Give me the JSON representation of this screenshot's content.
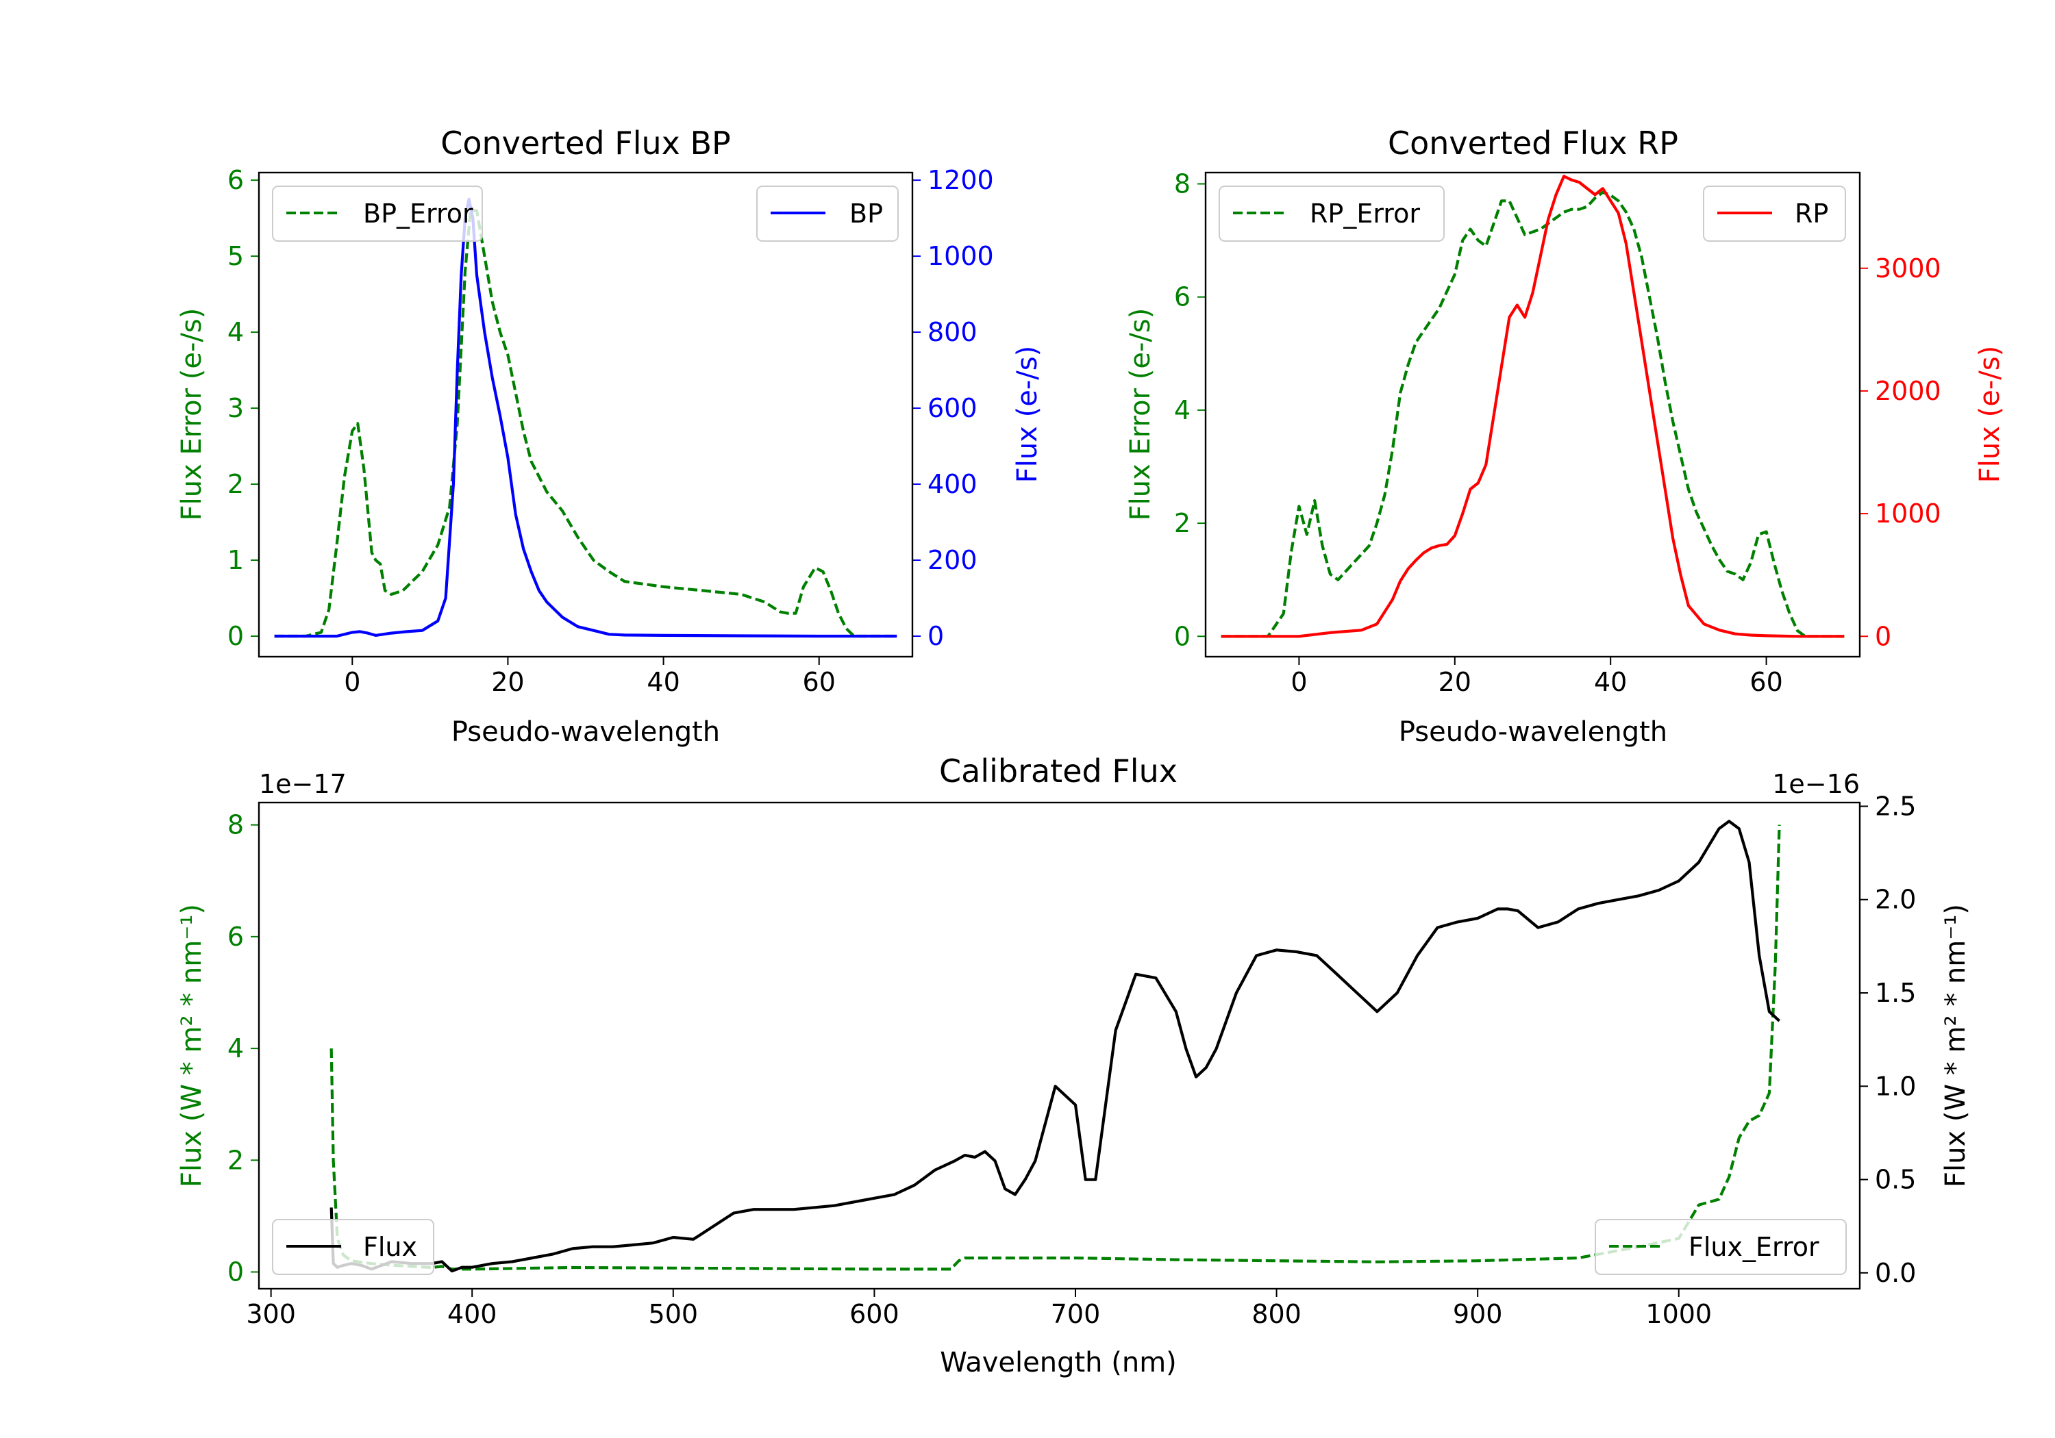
{
  "colors": {
    "bp": "#0000ff",
    "rp": "#ff0000",
    "err": "#008000",
    "flux": "#000000"
  },
  "chart_data": [
    {
      "type": "line",
      "title": "Converted Flux BP",
      "xlabel": "Pseudo-wavelength",
      "ylabel_left": "Flux Error (e-/s)",
      "ylabel_right": "Flux (e-/s)",
      "xlim": [
        -12,
        72
      ],
      "ylim_left": [
        -0.27,
        6.1
      ],
      "ylim_right": [
        -54,
        1220
      ],
      "xticks": [
        0,
        20,
        40,
        60
      ],
      "yticks_left": [
        0,
        1,
        2,
        3,
        4,
        5,
        6
      ],
      "yticks_right": [
        0,
        200,
        400,
        600,
        800,
        1000,
        1200
      ],
      "legend_left": "BP_Error",
      "legend_right": "BP",
      "series": [
        {
          "name": "BP_Error",
          "axis": "left",
          "style": "dashed",
          "color": "err",
          "x": [
            -10,
            -6,
            -4,
            -3,
            -2,
            -1,
            0,
            0.7,
            1.5,
            2.5,
            3,
            3.6,
            4.2,
            5,
            6.5,
            8,
            9,
            11,
            12.5,
            13.5,
            14.5,
            15.2,
            16,
            17,
            18,
            19,
            20,
            21,
            22,
            23,
            24,
            25,
            27,
            29,
            31,
            33,
            35,
            40,
            45,
            50,
            53,
            55,
            56,
            57,
            58,
            59.5,
            60.5,
            61.5,
            62.5,
            63.5,
            64.5,
            65,
            70
          ],
          "y": [
            0,
            0,
            0.05,
            0.35,
            1.2,
            2.1,
            2.7,
            2.8,
            2.2,
            1.1,
            1.0,
            0.95,
            0.6,
            0.55,
            0.6,
            0.75,
            0.85,
            1.2,
            1.7,
            2.8,
            4.8,
            5.6,
            5.6,
            5.0,
            4.4,
            4.0,
            3.7,
            3.2,
            2.7,
            2.3,
            2.1,
            1.9,
            1.65,
            1.3,
            1.0,
            0.85,
            0.72,
            0.65,
            0.6,
            0.55,
            0.45,
            0.32,
            0.3,
            0.3,
            0.65,
            0.9,
            0.85,
            0.6,
            0.3,
            0.1,
            0,
            0,
            0
          ]
        },
        {
          "name": "BP",
          "axis": "right",
          "style": "solid",
          "color": "bp",
          "x": [
            -10,
            -2,
            0,
            1,
            2,
            3,
            5,
            7,
            9,
            11,
            12,
            13,
            13.5,
            14,
            14.5,
            15,
            15.5,
            16,
            17,
            18,
            19,
            20,
            21,
            22,
            23,
            24,
            25,
            27,
            29,
            31,
            33,
            35,
            40,
            50,
            60,
            70
          ],
          "y": [
            0,
            0,
            10,
            12,
            8,
            2,
            8,
            12,
            15,
            40,
            100,
            400,
            700,
            950,
            1100,
            1150,
            1100,
            950,
            800,
            680,
            580,
            470,
            320,
            230,
            170,
            120,
            90,
            50,
            25,
            15,
            5,
            3,
            2,
            1,
            0,
            0
          ]
        }
      ]
    },
    {
      "type": "line",
      "title": "Converted Flux RP",
      "xlabel": "Pseudo-wavelength",
      "ylabel_left": "Flux Error (e-/s)",
      "ylabel_right": "Flux (e-/s)",
      "xlim": [
        -12,
        72
      ],
      "ylim_left": [
        -0.36,
        8.2
      ],
      "ylim_right": [
        -166,
        3780
      ],
      "xticks": [
        0,
        20,
        40,
        60
      ],
      "yticks_left": [
        0,
        2,
        4,
        6,
        8
      ],
      "yticks_right": [
        0,
        1000,
        2000,
        3000
      ],
      "legend_left": "RP_Error",
      "legend_right": "RP",
      "series": [
        {
          "name": "RP_Error",
          "axis": "left",
          "style": "dashed",
          "color": "err",
          "x": [
            -10,
            -4,
            -2,
            -1,
            0,
            1,
            2,
            3,
            4,
            5,
            7,
            9,
            10,
            11,
            12,
            13,
            14,
            15,
            16,
            17,
            18,
            19,
            20,
            21,
            22,
            23,
            24,
            25,
            26,
            27,
            28,
            29,
            30,
            31,
            32,
            33,
            34,
            35,
            36,
            37,
            38,
            39,
            40,
            41,
            42,
            43,
            44,
            45,
            46,
            47,
            48,
            49,
            50,
            51,
            52,
            53,
            54,
            55,
            56,
            57,
            58,
            59,
            60,
            61,
            62,
            63,
            64,
            65,
            66,
            70
          ],
          "y": [
            0,
            0,
            0.4,
            1.5,
            2.3,
            1.8,
            2.4,
            1.6,
            1.1,
            1.0,
            1.3,
            1.6,
            2.0,
            2.5,
            3.3,
            4.3,
            4.8,
            5.2,
            5.4,
            5.6,
            5.8,
            6.1,
            6.4,
            7.0,
            7.2,
            7.0,
            6.9,
            7.3,
            7.7,
            7.7,
            7.4,
            7.1,
            7.15,
            7.2,
            7.3,
            7.4,
            7.5,
            7.55,
            7.55,
            7.6,
            7.75,
            7.85,
            7.8,
            7.7,
            7.5,
            7.2,
            6.7,
            6.0,
            5.3,
            4.5,
            3.8,
            3.2,
            2.6,
            2.2,
            1.9,
            1.6,
            1.35,
            1.15,
            1.1,
            1.0,
            1.3,
            1.8,
            1.85,
            1.3,
            0.8,
            0.4,
            0.1,
            0,
            0,
            0
          ]
        },
        {
          "name": "RP",
          "axis": "right",
          "style": "solid",
          "color": "rp",
          "x": [
            -10,
            0,
            4,
            8,
            10,
            11,
            12,
            13,
            14,
            15,
            16,
            17,
            18,
            19,
            20,
            21,
            22,
            23,
            24,
            25,
            26,
            27,
            28,
            29,
            30,
            31,
            32,
            33,
            34,
            35,
            36,
            37,
            38,
            39,
            40,
            41,
            42,
            43,
            44,
            45,
            46,
            47,
            48,
            49,
            50,
            52,
            54,
            56,
            58,
            60,
            62,
            64,
            70
          ],
          "y": [
            0,
            0,
            30,
            50,
            100,
            200,
            300,
            450,
            550,
            620,
            680,
            720,
            740,
            750,
            820,
            1000,
            1200,
            1250,
            1400,
            1800,
            2200,
            2600,
            2700,
            2600,
            2800,
            3100,
            3400,
            3600,
            3750,
            3720,
            3700,
            3650,
            3600,
            3650,
            3550,
            3450,
            3200,
            2800,
            2400,
            2000,
            1600,
            1200,
            800,
            500,
            250,
            100,
            50,
            20,
            10,
            5,
            2,
            0,
            0
          ]
        }
      ]
    },
    {
      "type": "line",
      "title": "Calibrated Flux",
      "xlabel": "Wavelength (nm)",
      "ylabel_left": "Flux (W * m² * nm⁻¹)",
      "ylabel_right": "Flux (W * m² * nm⁻¹)",
      "offset_left": "1e−17",
      "offset_right": "1e−16",
      "xlim": [
        294,
        1090
      ],
      "ylim_left": [
        -0.3,
        8.4
      ],
      "ylim_right": [
        -0.085,
        2.52
      ],
      "xticks": [
        300,
        400,
        500,
        600,
        700,
        800,
        900,
        1000
      ],
      "yticks_left": [
        0,
        2,
        4,
        6,
        8
      ],
      "yticks_left_labels": [
        "0",
        "2",
        "4",
        "6",
        "8"
      ],
      "yticks_right": [
        0,
        0.5,
        1.0,
        1.5,
        2.0,
        2.5
      ],
      "yticks_right_labels": [
        "0.0",
        "0.5",
        "1.0",
        "1.5",
        "2.0",
        "2.5"
      ],
      "legend_left": "Flux",
      "legend_right": "Flux_Error",
      "series": [
        {
          "name": "Flux_Error",
          "axis": "left",
          "style": "dashed",
          "color": "err",
          "x": [
            330,
            331,
            333,
            336,
            340,
            350,
            360,
            370,
            380,
            385,
            390,
            400,
            450,
            500,
            550,
            600,
            638,
            642,
            645,
            650,
            700,
            750,
            800,
            850,
            900,
            950,
            980,
            1000,
            1005,
            1010,
            1020,
            1025,
            1030,
            1035,
            1040,
            1045,
            1048,
            1050
          ],
          "y": [
            4.0,
            2.0,
            0.6,
            0.3,
            0.2,
            0.15,
            0.12,
            0.1,
            0.08,
            0.1,
            0.05,
            0.05,
            0.08,
            0.07,
            0.06,
            0.05,
            0.05,
            0.2,
            0.25,
            0.25,
            0.25,
            0.22,
            0.2,
            0.18,
            0.2,
            0.25,
            0.45,
            0.6,
            0.9,
            1.2,
            1.3,
            1.7,
            2.4,
            2.7,
            2.8,
            3.2,
            5.5,
            8.0
          ]
        },
        {
          "name": "Flux",
          "axis": "right",
          "style": "solid",
          "color": "flux",
          "x": [
            330,
            331,
            333,
            336,
            340,
            345,
            350,
            360,
            370,
            380,
            385,
            390,
            395,
            400,
            410,
            420,
            430,
            440,
            450,
            460,
            470,
            480,
            490,
            500,
            510,
            520,
            530,
            540,
            560,
            580,
            600,
            610,
            620,
            630,
            640,
            645,
            650,
            655,
            660,
            665,
            670,
            675,
            680,
            690,
            700,
            705,
            710,
            715,
            720,
            730,
            740,
            750,
            755,
            760,
            765,
            770,
            780,
            790,
            800,
            810,
            820,
            830,
            840,
            850,
            860,
            870,
            880,
            890,
            900,
            910,
            915,
            920,
            930,
            940,
            950,
            960,
            970,
            980,
            990,
            1000,
            1010,
            1020,
            1025,
            1030,
            1035,
            1040,
            1045,
            1050
          ],
          "y": [
            0.35,
            0.05,
            0.03,
            0.04,
            0.05,
            0.04,
            0.02,
            0.06,
            0.05,
            0.05,
            0.06,
            0.01,
            0.03,
            0.03,
            0.05,
            0.06,
            0.08,
            0.1,
            0.13,
            0.14,
            0.14,
            0.15,
            0.16,
            0.19,
            0.18,
            0.25,
            0.32,
            0.34,
            0.34,
            0.36,
            0.4,
            0.42,
            0.47,
            0.55,
            0.6,
            0.63,
            0.62,
            0.65,
            0.6,
            0.45,
            0.42,
            0.5,
            0.6,
            1.0,
            0.9,
            0.5,
            0.5,
            0.9,
            1.3,
            1.6,
            1.58,
            1.4,
            1.2,
            1.05,
            1.1,
            1.2,
            1.5,
            1.7,
            1.73,
            1.72,
            1.7,
            1.6,
            1.5,
            1.4,
            1.5,
            1.7,
            1.85,
            1.88,
            1.9,
            1.95,
            1.95,
            1.94,
            1.85,
            1.88,
            1.95,
            1.98,
            2.0,
            2.02,
            2.05,
            2.1,
            2.2,
            2.38,
            2.42,
            2.38,
            2.2,
            1.7,
            1.4,
            1.35
          ]
        }
      ]
    }
  ]
}
